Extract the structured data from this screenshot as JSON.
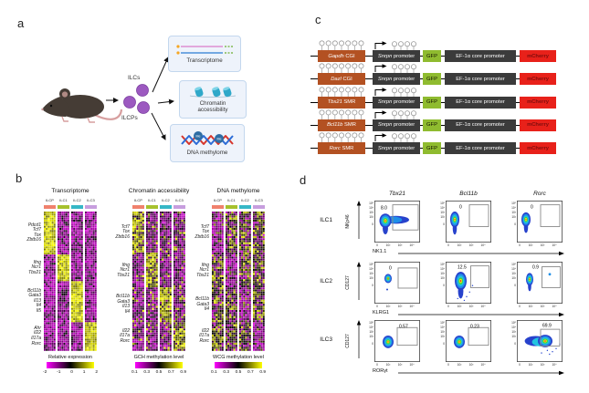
{
  "panel_labels": {
    "a": "a",
    "b": "b",
    "c": "c",
    "d": "d"
  },
  "panel_a": {
    "ilcs_label": "ILCs",
    "ilcps_label": "ILCPs",
    "me_label": "Me",
    "outputs": [
      {
        "icon": "rna-transcript-icon",
        "label_lines": [
          "Transcriptome"
        ]
      },
      {
        "icon": "nucleosome-icon",
        "label_lines": [
          "Chromatin",
          "accessibility"
        ]
      },
      {
        "icon": "dna-methylation-icon",
        "label_lines": [
          "DNA methylome"
        ]
      }
    ]
  },
  "panel_c": {
    "snrpn_italic": "Snrpn",
    "snrpn_rest": "promoter",
    "gfp": "GFP",
    "ef1a": "EF-1α core promoter",
    "mcherry": "mCherry",
    "colors": {
      "region_box": "#b35122",
      "dark_box": "#3b3b3b",
      "gfp_box": "#8fbb2f",
      "mcherry_box": "#e8211a"
    },
    "rows": [
      {
        "gene": "Gapdh",
        "region": "CGI"
      },
      {
        "gene": "Dazl",
        "region": "CGI"
      },
      {
        "gene": "Tbx21",
        "region": "SMR"
      },
      {
        "gene": "Bcl11b",
        "region": "SMR"
      },
      {
        "gene": "Rorc",
        "region": "SMR"
      }
    ]
  },
  "chart_data": [
    {
      "type": "heatmap",
      "title": "Transcriptome",
      "measure": "expression",
      "columns": [
        "ILCP",
        "ILC1",
        "ILC2",
        "ILC3"
      ],
      "column_colors": [
        "#f0816d",
        "#a6c12d",
        "#36b7c6",
        "#c79ede"
      ],
      "gene_groups": [
        {
          "genes": [
            "Pdcd1",
            "Tcf7",
            "Tox",
            "Zbtb16"
          ],
          "high_in": "ILCP"
        },
        {
          "genes": [
            "Ifng",
            "Ncr1",
            "Tbx21"
          ],
          "high_in": "ILC1"
        },
        {
          "genes": [
            "Bcl11b",
            "Gata3",
            "Il13",
            "Il4",
            "Il5"
          ],
          "high_in": "ILC2"
        },
        {
          "genes": [
            "Ahr",
            "Il22",
            "Il17a",
            "Rorc"
          ],
          "high_in": "ILC3"
        }
      ],
      "group_bounds": [
        0.31,
        0.5,
        0.79,
        1
      ],
      "colorbar": {
        "label": "Relative expression",
        "ticks": [
          "-2",
          "-1",
          "0",
          "1",
          "2"
        ],
        "gradient": [
          "#ff00ff",
          "#000000",
          "#ffff00"
        ]
      }
    },
    {
      "type": "heatmap",
      "title": "Chromatin accessibility",
      "measure": "gch",
      "columns": [
        "ILCP",
        "ILC1",
        "ILC2",
        "ILC3"
      ],
      "column_colors": [
        "#f0816d",
        "#a6c12d",
        "#36b7c6",
        "#c79ede"
      ],
      "gene_groups": [
        {
          "genes": [
            "Tcf7",
            "Tox",
            "Zbtb16"
          ],
          "high_in": "ILCP"
        },
        {
          "genes": [
            "Ifng",
            "Ncr1",
            "Tbx21"
          ],
          "high_in": "ILC1"
        },
        {
          "genes": [
            "Bcl11b",
            "Gata3",
            "Il13",
            "Il4"
          ],
          "high_in": "ILC2"
        },
        {
          "genes": [
            "Il22",
            "Il17a",
            "Rorc"
          ],
          "high_in": "ILC3"
        }
      ],
      "group_bounds": [
        0.3,
        0.55,
        0.79,
        1
      ],
      "colorbar": {
        "label": "GCH methylation level",
        "ticks": [
          "0.1",
          "0.3",
          "0.5",
          "0.7",
          "0.9"
        ],
        "gradient": [
          "#ff00ff",
          "#000000",
          "#ffff00"
        ]
      }
    },
    {
      "type": "heatmap",
      "title": "DNA methylome",
      "measure": "wcg",
      "columns": [
        "ILCP",
        "ILC1",
        "ILC2",
        "ILC3"
      ],
      "column_colors": [
        "#f0816d",
        "#a6c12d",
        "#36b7c6",
        "#c79ede"
      ],
      "gene_groups": [
        {
          "genes": [
            "Tcf7",
            "Tox",
            "Zbtb16"
          ],
          "high_in": "ILCP"
        },
        {
          "genes": [
            "Ifng",
            "Ncr1",
            "Tbx21"
          ],
          "high_in": "ILC1"
        },
        {
          "genes": [
            "Bcl11b",
            "Gata3",
            "Il4"
          ],
          "high_in": "ILC2"
        },
        {
          "genes": [
            "Il22",
            "Il17a",
            "Rorc"
          ],
          "high_in": "ILC3"
        }
      ],
      "group_bounds": [
        0.3,
        0.55,
        0.79,
        1
      ],
      "colorbar": {
        "label": "WCG methylation level",
        "ticks": [
          "0.1",
          "0.3",
          "0.5",
          "0.7",
          "0.9"
        ],
        "gradient": [
          "#ff00ff",
          "#000000",
          "#ffff00"
        ]
      }
    },
    {
      "type": "flow_cytometry_grid",
      "column_headers": [
        "Tbx21",
        "Bcl11b",
        "Rorc"
      ],
      "rows": [
        {
          "name": "ILC1",
          "y_label": "NKp46",
          "x_label": "NK1.1",
          "gate_percents": [
            8.0,
            0,
            0
          ]
        },
        {
          "name": "ILC2",
          "y_label": "CD127",
          "x_label": "KLRG1",
          "gate_percents": [
            0,
            12.5,
            0.9
          ]
        },
        {
          "name": "ILC3",
          "y_label": "CD127",
          "x_label": "RORγt",
          "gate_percents": [
            0.57,
            0.23,
            69.9
          ]
        }
      ],
      "y_ticks": [
        "10⁵",
        "10⁴",
        "10³",
        "10²",
        "0"
      ],
      "x_ticks": [
        "0",
        "10²",
        "10³",
        "10⁴"
      ],
      "plots": [
        {
          "row": 0,
          "col": 0,
          "percent": "8.0",
          "gate": [
            0.4,
            0.1,
            0.56,
            0.6
          ],
          "blob": {
            "cx": 0.24,
            "cy": 0.48,
            "rx": 0.13,
            "ry": 0.17
          },
          "extras": [
            "tail",
            "teardrop"
          ],
          "pct": [
            0.14,
            0.12
          ]
        },
        {
          "row": 0,
          "col": 1,
          "percent": "0",
          "gate": [
            0.52,
            0.1,
            0.42,
            0.52
          ],
          "blob": {
            "cx": 0.2,
            "cy": 0.45,
            "rx": 0.1,
            "ry": 0.19
          },
          "extras": [
            "teardrop"
          ],
          "pct": [
            0.3,
            0.1
          ]
        },
        {
          "row": 0,
          "col": 2,
          "percent": "0",
          "gate": [
            0.52,
            0.1,
            0.42,
            0.52
          ],
          "blob": {
            "cx": 0.2,
            "cy": 0.45,
            "rx": 0.1,
            "ry": 0.17
          },
          "extras": [
            "teardrop"
          ],
          "pct": [
            0.3,
            0.1
          ]
        },
        {
          "row": 1,
          "col": 0,
          "percent": "0",
          "gate": [
            0.52,
            0.15,
            0.42,
            0.48
          ],
          "blob": {
            "cx": 0.3,
            "cy": 0.4,
            "rx": 0.08,
            "ry": 0.11
          },
          "extras": [
            "dotbelow"
          ],
          "pct": [
            0.32,
            0.1
          ]
        },
        {
          "row": 1,
          "col": 1,
          "percent": "12.5",
          "gate": [
            0.55,
            0.1,
            0.4,
            0.52
          ],
          "blob": {
            "cx": 0.33,
            "cy": 0.46,
            "rx": 0.13,
            "ry": 0.22
          },
          "extras": [
            "teardrop",
            "scatter"
          ],
          "pct": [
            0.26,
            0.08
          ]
        },
        {
          "row": 1,
          "col": 2,
          "percent": "0.9",
          "gate": [
            0.55,
            0.12,
            0.4,
            0.5
          ],
          "blob": {
            "cx": 0.28,
            "cy": 0.42,
            "rx": 0.08,
            "ry": 0.15
          },
          "extras": [
            "teardrop",
            "gatedot"
          ],
          "pct": [
            0.34,
            0.08
          ]
        },
        {
          "row": 2,
          "col": 0,
          "percent": "0.57",
          "gate": [
            0.5,
            0.18,
            0.44,
            0.42
          ],
          "blob": {
            "cx": 0.3,
            "cy": 0.52,
            "rx": 0.12,
            "ry": 0.15
          },
          "extras": [],
          "pct": [
            0.54,
            0.1
          ]
        },
        {
          "row": 2,
          "col": 1,
          "percent": "0.23",
          "gate": [
            0.5,
            0.18,
            0.44,
            0.42
          ],
          "blob": {
            "cx": 0.3,
            "cy": 0.52,
            "rx": 0.12,
            "ry": 0.15
          },
          "extras": [],
          "pct": [
            0.54,
            0.1
          ]
        },
        {
          "row": 2,
          "col": 2,
          "percent": "69.9",
          "gate": [
            0.52,
            0.22,
            0.42,
            0.4
          ],
          "blob": {
            "cx": 0.62,
            "cy": 0.5,
            "rx": 0.16,
            "ry": 0.15
          },
          "extras": [
            "wide",
            "scatter"
          ],
          "pct": [
            0.56,
            0.08
          ]
        }
      ]
    }
  ]
}
